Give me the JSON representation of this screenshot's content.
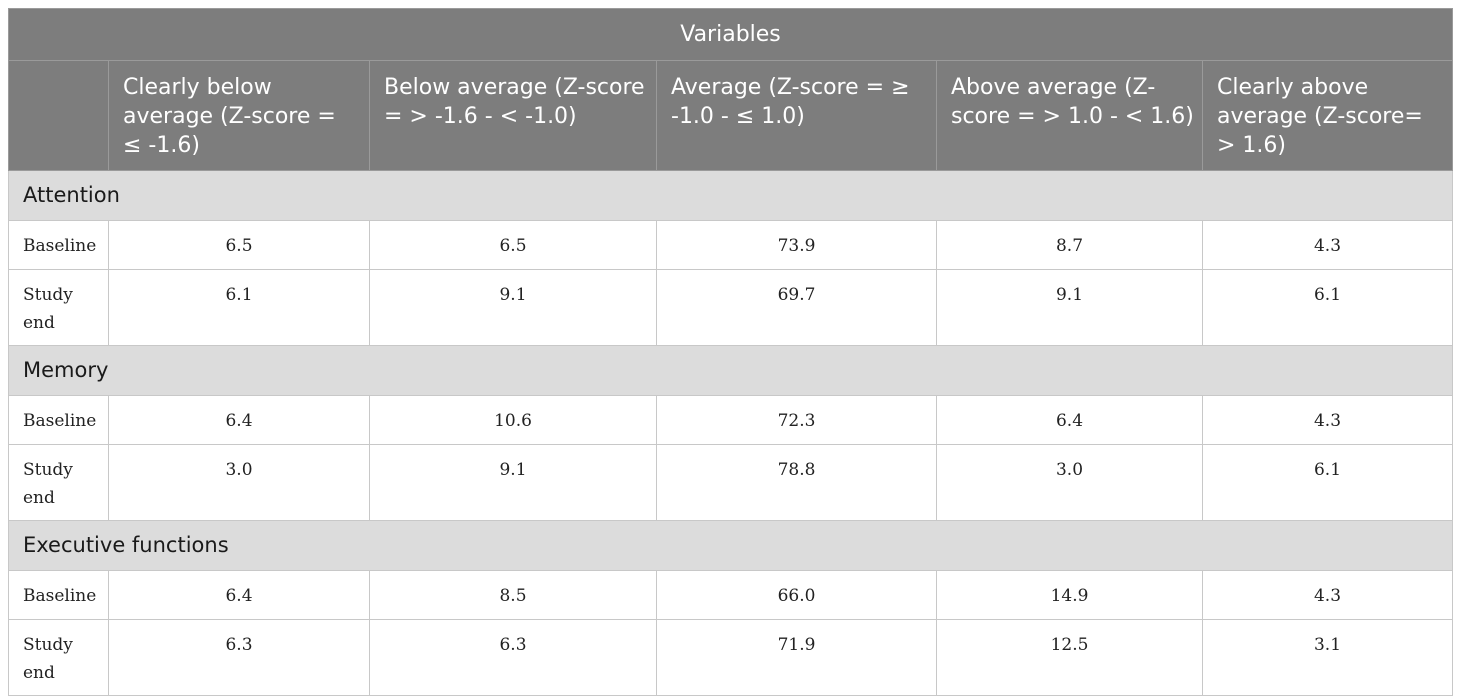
{
  "table": {
    "super_header": "Variables",
    "column_headers": [
      "",
      "Clearly below average (Z-score = ≤ -1.6)",
      "Below average (Z-score = > -1.6 - < -1.0)",
      "Average (Z-score = ≥ -1.0 - ≤ 1.0)",
      "Above average (Z-score = > 1.0 - < 1.6)",
      "Clearly above average (Z-score= > 1.6)"
    ],
    "sections": [
      {
        "title": "Attention",
        "rows": [
          {
            "label": "Baseline",
            "values": [
              "6.5",
              "6.5",
              "73.9",
              "8.7",
              "4.3"
            ]
          },
          {
            "label": "Study end",
            "values": [
              "6.1",
              "9.1",
              "69.7",
              "9.1",
              "6.1"
            ]
          }
        ]
      },
      {
        "title": "Memory",
        "rows": [
          {
            "label": "Baseline",
            "values": [
              "6.4",
              "10.6",
              "72.3",
              "6.4",
              "4.3"
            ]
          },
          {
            "label": "Study end",
            "values": [
              "3.0",
              "9.1",
              "78.8",
              "3.0",
              "6.1"
            ]
          }
        ]
      },
      {
        "title": "Executive functions",
        "rows": [
          {
            "label": "Baseline",
            "values": [
              "6.4",
              "8.5",
              "66.0",
              "14.9",
              "4.3"
            ]
          },
          {
            "label": "Study end",
            "values": [
              "6.3",
              "6.3",
              "71.9",
              "12.5",
              "3.1"
            ]
          }
        ]
      }
    ]
  }
}
